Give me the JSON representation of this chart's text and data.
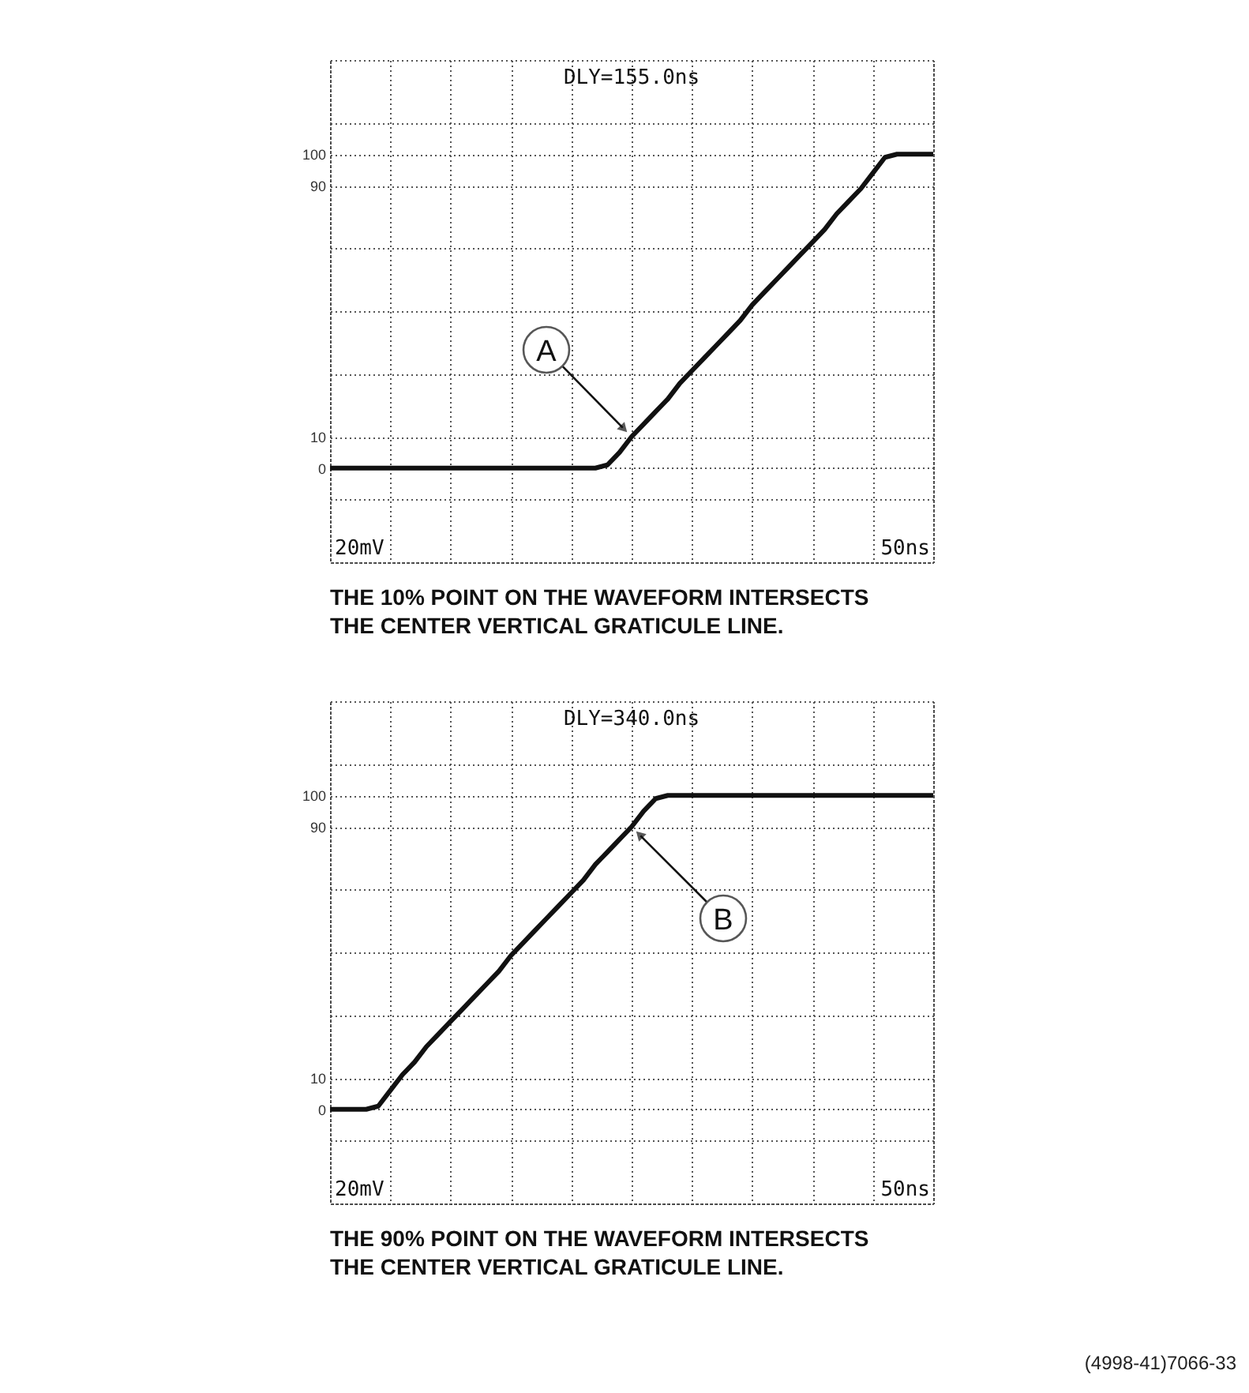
{
  "chart_data": [
    {
      "type": "line",
      "title": "THE 10% POINT ON THE WAVEFORM INTERSECTS THE CENTER VERTICAL GRATICULE LINE.",
      "categories": [
        null,
        null,
        null,
        null,
        null,
        null,
        null,
        null,
        null,
        null,
        null,
        null,
        null,
        null,
        null,
        null,
        null,
        null,
        null,
        null,
        null,
        null,
        null,
        null,
        null,
        null,
        null,
        null,
        null,
        null,
        null,
        null,
        null,
        null,
        null,
        null,
        null,
        null,
        null,
        null,
        null,
        null,
        null,
        null,
        null,
        null,
        null,
        null,
        null,
        null,
        null
      ],
      "ylim": [
        -30,
        130
      ],
      "yticks": [
        {
          "value": -30,
          "label": null
        },
        {
          "value": -10,
          "label": null
        },
        0,
        10,
        {
          "value": 30,
          "label": null
        },
        {
          "value": 50,
          "label": null
        },
        {
          "value": 70,
          "label": null
        },
        90,
        100,
        {
          "value": 110,
          "label": null
        },
        {
          "value": 130,
          "label": null
        }
      ],
      "tick_labels": "y",
      "grid": true,
      "series": [
        {
          "color": "#111111",
          "values": [
            0,
            0,
            0,
            0,
            0,
            0,
            0,
            0,
            0,
            0,
            0,
            0,
            0,
            0,
            0,
            0,
            0,
            0,
            0,
            0,
            0,
            0,
            0,
            1,
            5,
            10,
            14,
            18,
            22,
            27,
            31,
            35,
            39,
            43,
            47,
            52,
            56,
            60,
            64,
            68,
            72,
            76,
            81,
            85,
            89,
            94,
            99,
            100,
            100,
            100,
            100
          ]
        }
      ],
      "annotations": [
        "DLY=155.0ns",
        "20mV",
        "50ns",
        "A"
      ]
    },
    {
      "type": "line",
      "title": "THE 90% POINT ON THE WAVEFORM INTERSECTS THE CENTER VERTICAL GRATICULE LINE.",
      "categories": [
        null,
        null,
        null,
        null,
        null,
        null,
        null,
        null,
        null,
        null,
        null,
        null,
        null,
        null,
        null,
        null,
        null,
        null,
        null,
        null,
        null,
        null,
        null,
        null,
        null,
        null,
        null,
        null,
        null,
        null,
        null,
        null,
        null,
        null,
        null,
        null,
        null,
        null,
        null,
        null,
        null,
        null,
        null,
        null,
        null,
        null,
        null,
        null,
        null,
        null,
        null
      ],
      "ylim": [
        -30,
        130
      ],
      "yticks": [
        {
          "value": -30,
          "label": null
        },
        {
          "value": -10,
          "label": null
        },
        0,
        10,
        {
          "value": 30,
          "label": null
        },
        {
          "value": 50,
          "label": null
        },
        {
          "value": 70,
          "label": null
        },
        90,
        100,
        {
          "value": 110,
          "label": null
        },
        {
          "value": 130,
          "label": null
        }
      ],
      "tick_labels": "y",
      "grid": true,
      "series": [
        {
          "color": "#111111",
          "values": [
            0,
            0,
            0,
            0,
            1,
            6,
            11,
            15,
            20,
            24,
            28,
            32,
            36,
            40,
            44,
            49,
            53,
            57,
            61,
            65,
            69,
            73,
            78,
            82,
            86,
            90,
            95,
            99,
            100,
            100,
            100,
            100,
            100,
            100,
            100,
            100,
            100,
            100,
            100,
            100,
            100,
            100,
            100,
            100,
            100,
            100,
            100,
            100,
            100,
            100,
            100
          ]
        }
      ],
      "annotations": [
        "DLY=340.0ns",
        "20mV",
        "50ns",
        "B",
        "(4998-41)7066-33"
      ]
    }
  ]
}
